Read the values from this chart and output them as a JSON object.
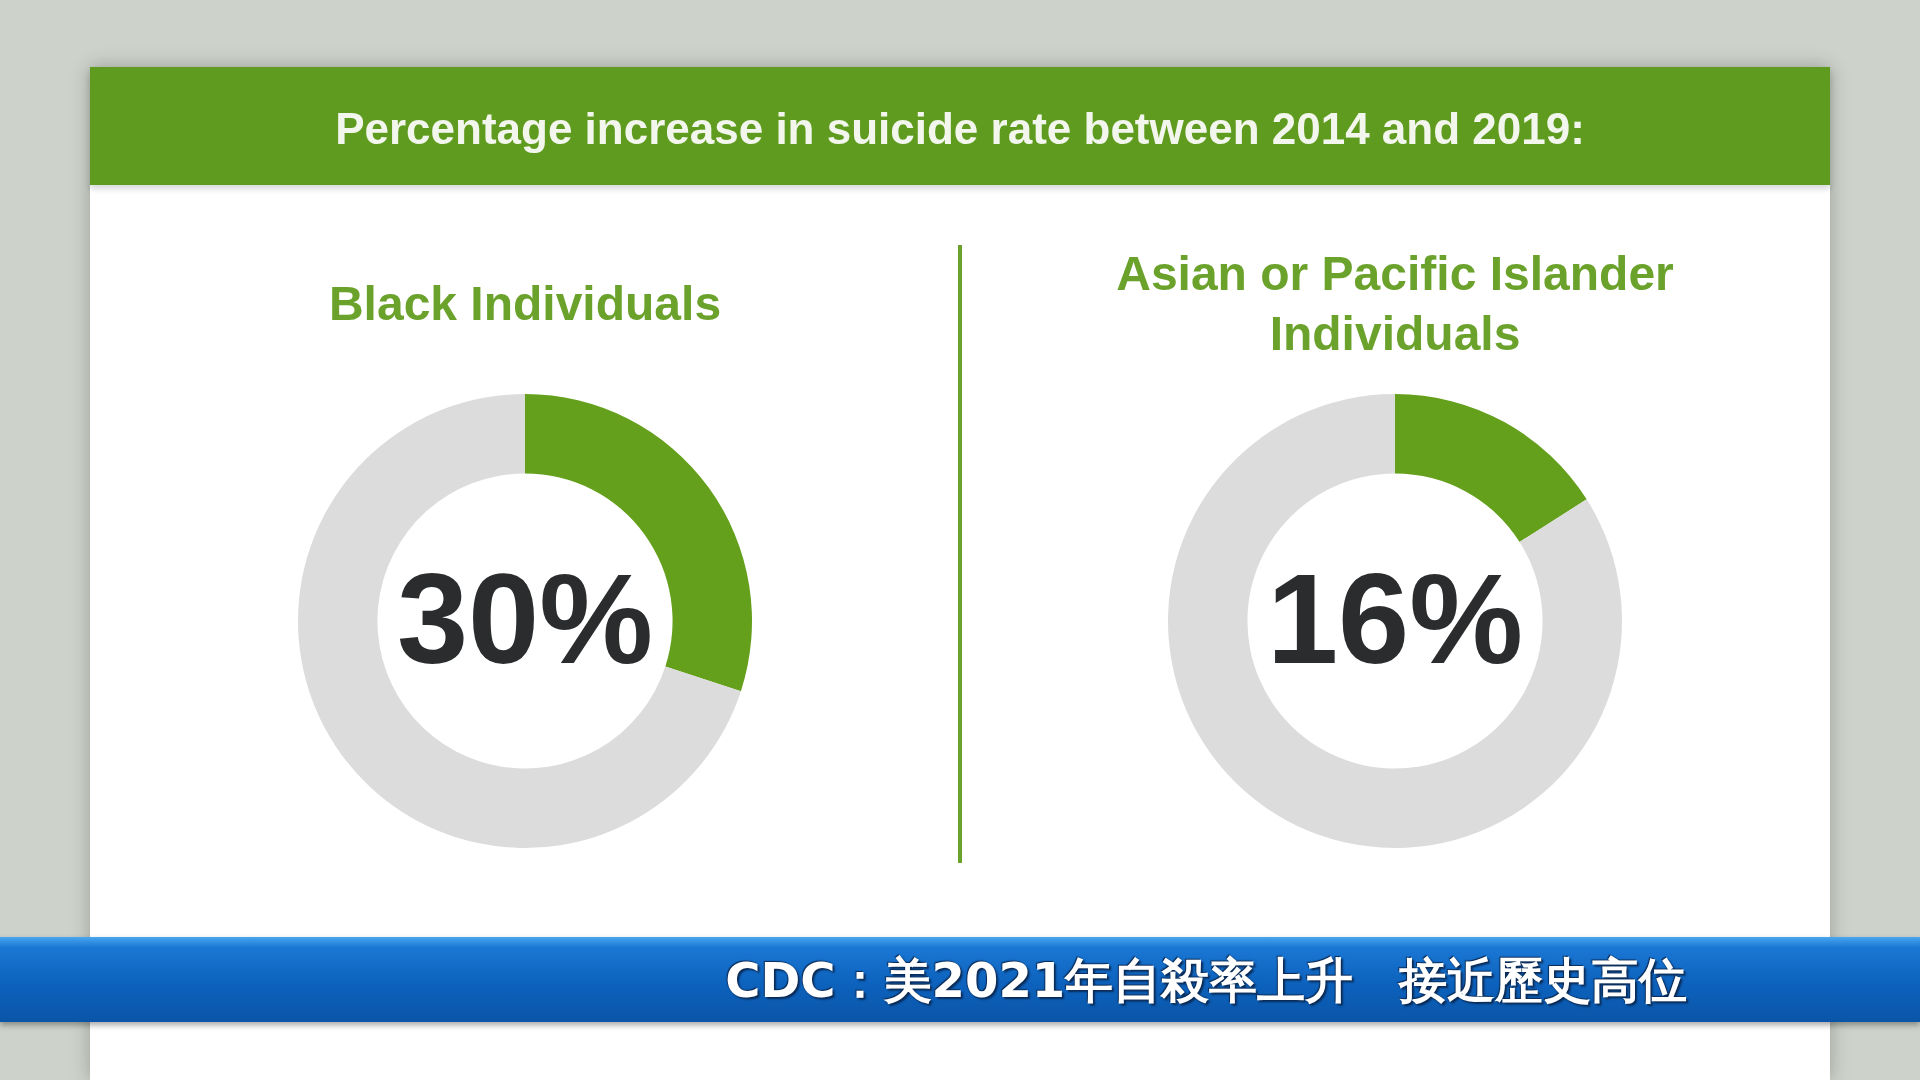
{
  "chart_data": [
    {
      "type": "other",
      "title": "Percentage increase in suicide rate between 2014 and 2019:",
      "annotations": [
        "CDC：美2021年自殺率上升 接近歷史高位"
      ]
    },
    {
      "type": "donut",
      "title": "Black Individuals",
      "categories": [
        null,
        null
      ],
      "values": [
        30,
        70
      ],
      "colors": [
        "#64a01c",
        "#dcdcdc"
      ],
      "value_labels": [
        "30%",
        null
      ]
    },
    {
      "type": "donut",
      "title": "Asian or Pacific Islander Individuals",
      "categories": [
        null,
        null
      ],
      "values": [
        16,
        84
      ],
      "colors": [
        "#64a01c",
        "#dcdcdc"
      ],
      "value_labels": [
        "16%",
        null
      ]
    }
  ]
}
